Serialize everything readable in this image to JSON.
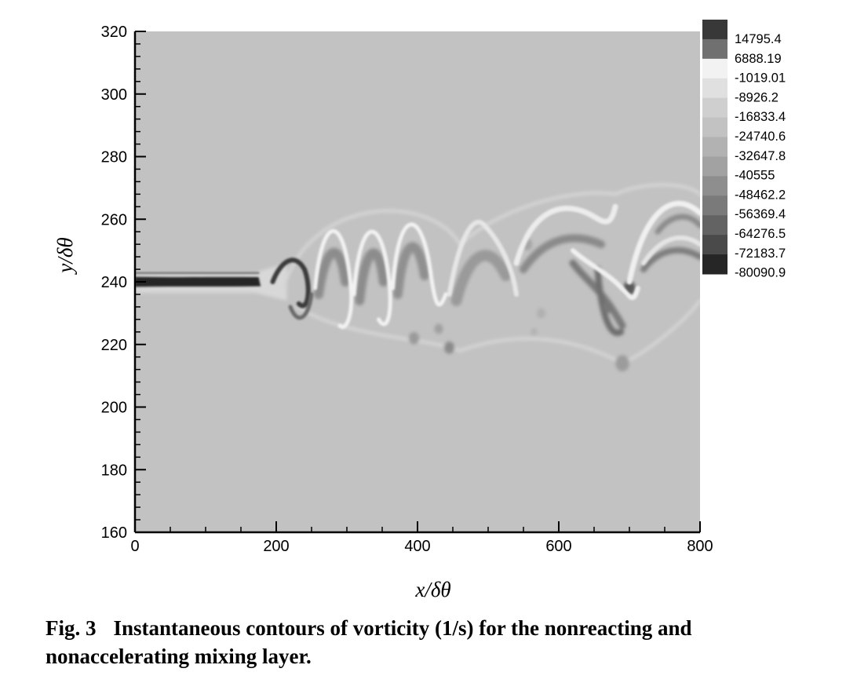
{
  "chart_data": {
    "type": "heatmap",
    "title": "",
    "xlabel": "x/δθ",
    "ylabel": "y/δθ",
    "xlim": [
      0,
      800
    ],
    "ylim": [
      160,
      320
    ],
    "x_ticks": [
      "0",
      "200",
      "400",
      "600",
      "800"
    ],
    "y_ticks": [
      "160",
      "180",
      "200",
      "220",
      "240",
      "260",
      "280",
      "300",
      "320"
    ],
    "colorbar": {
      "label": "vorticity (1/s)",
      "levels": [
        "14795.4",
        "6888.19",
        "-1019.01",
        "-8926.2",
        "-16833.4",
        "-24740.6",
        "-32647.8",
        "-40555",
        "-48462.2",
        "-56369.4",
        "-64276.5",
        "-72183.7",
        "-80090.9"
      ],
      "colors": [
        "#383838",
        "#707070",
        "#f2f2f2",
        "#e0e0e0",
        "#cfcfcf",
        "#c2c2c2",
        "#b2b2b2",
        "#a2a2a2",
        "#8e8e8e",
        "#7a7a7a",
        "#636363",
        "#4a4a4a",
        "#262626"
      ]
    },
    "background_level": "-1019.01",
    "mixing_layer_centerline": [
      {
        "x": 0,
        "y": 240
      },
      {
        "x": 150,
        "y": 240.5
      },
      {
        "x": 230,
        "y": 243
      },
      {
        "x": 300,
        "y": 248
      },
      {
        "x": 380,
        "y": 250
      },
      {
        "x": 450,
        "y": 244
      },
      {
        "x": 550,
        "y": 250
      },
      {
        "x": 650,
        "y": 252
      },
      {
        "x": 700,
        "y": 238
      },
      {
        "x": 800,
        "y": 255
      }
    ]
  },
  "caption": {
    "figure_number": "Fig. 3",
    "text": "Instantaneous contours of vorticity (1/s) for the nonreacting and nonaccelerating mixing layer."
  }
}
